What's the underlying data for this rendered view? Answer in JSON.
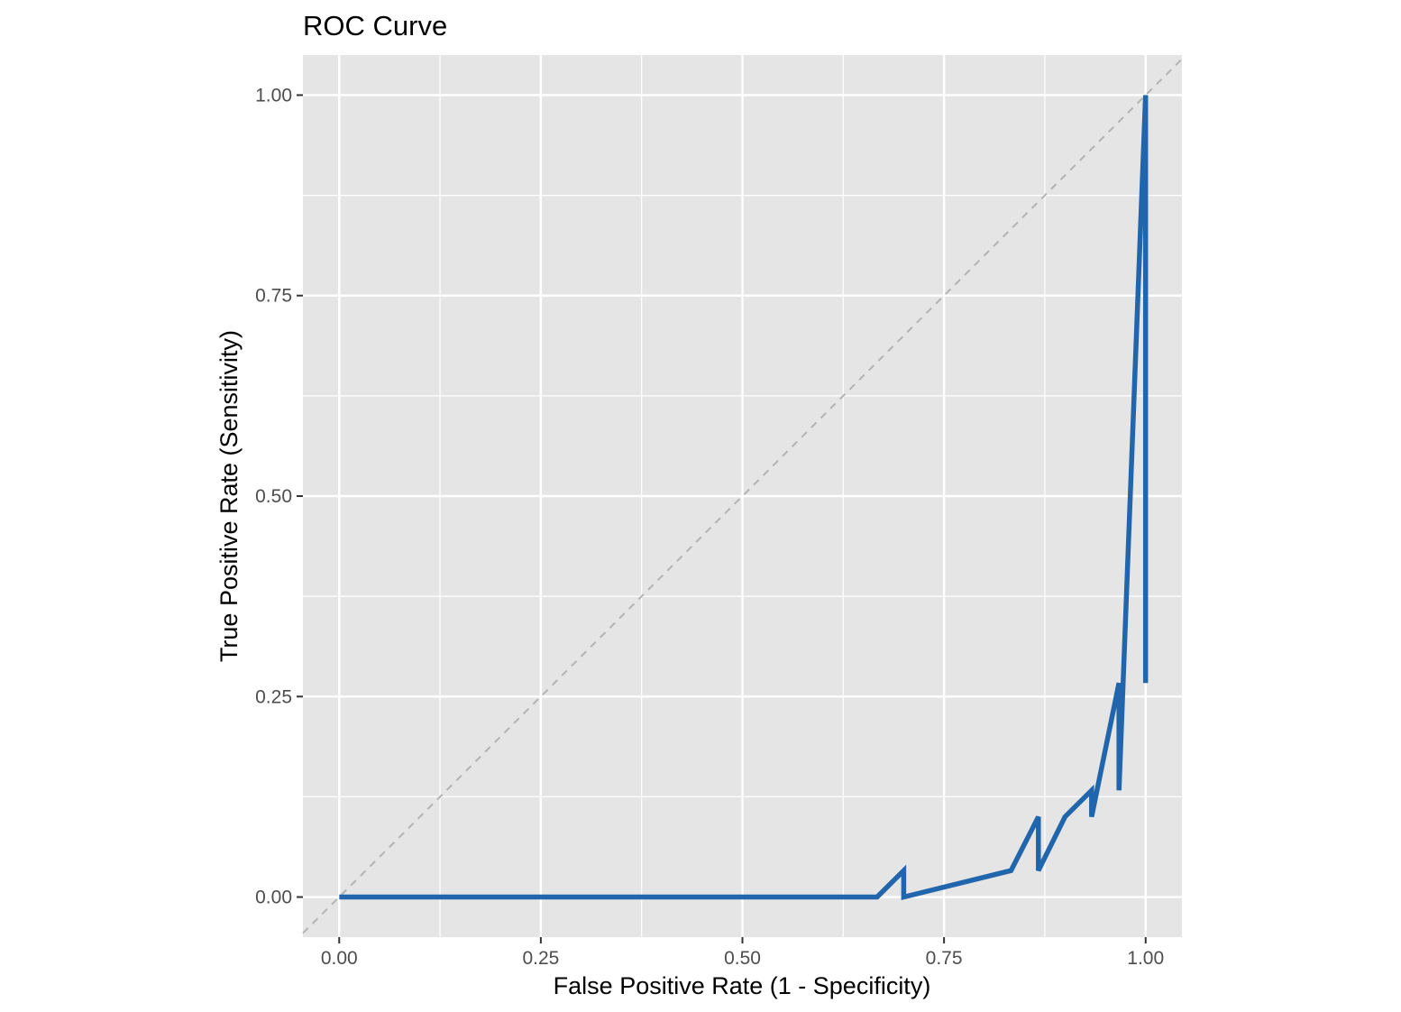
{
  "chart_data": {
    "type": "line",
    "title": "ROC Curve",
    "xlabel": "False Positive Rate (1 - Specificity)",
    "ylabel": "True Positive Rate (Sensitivity)",
    "xlim": [
      -0.045,
      1.045
    ],
    "ylim": [
      -0.05,
      1.05
    ],
    "x_ticks": [
      0,
      0.25,
      0.5,
      0.75,
      1
    ],
    "x_tick_labels": [
      "0.00",
      "0.25",
      "0.50",
      "0.75",
      "1.00"
    ],
    "y_ticks": [
      0,
      0.25,
      0.5,
      0.75,
      1
    ],
    "y_tick_labels": [
      "0.00",
      "0.25",
      "0.50",
      "0.75",
      "1.00"
    ],
    "grid": true,
    "legend": "none",
    "colors": {
      "panel_background": "#e5e5e5",
      "grid": "#ffffff",
      "series": "#2166ac",
      "reference": "#b3b3b3"
    },
    "reference_line": {
      "x": [
        -0.045,
        1.045
      ],
      "y": [
        -0.045,
        1.045
      ],
      "style": "dashed"
    },
    "series": [
      {
        "x": [
          0,
          0.667,
          0.7,
          0.7,
          0.833,
          0.867,
          0.867,
          0.9,
          0.933,
          0.933,
          0.967,
          0.967,
          1,
          1
        ],
        "y": [
          0,
          0,
          0.033,
          0,
          0.033,
          0.1,
          0.033,
          0.1,
          0.133,
          0.1,
          0.267,
          0.133,
          1,
          0.267
        ]
      }
    ]
  }
}
